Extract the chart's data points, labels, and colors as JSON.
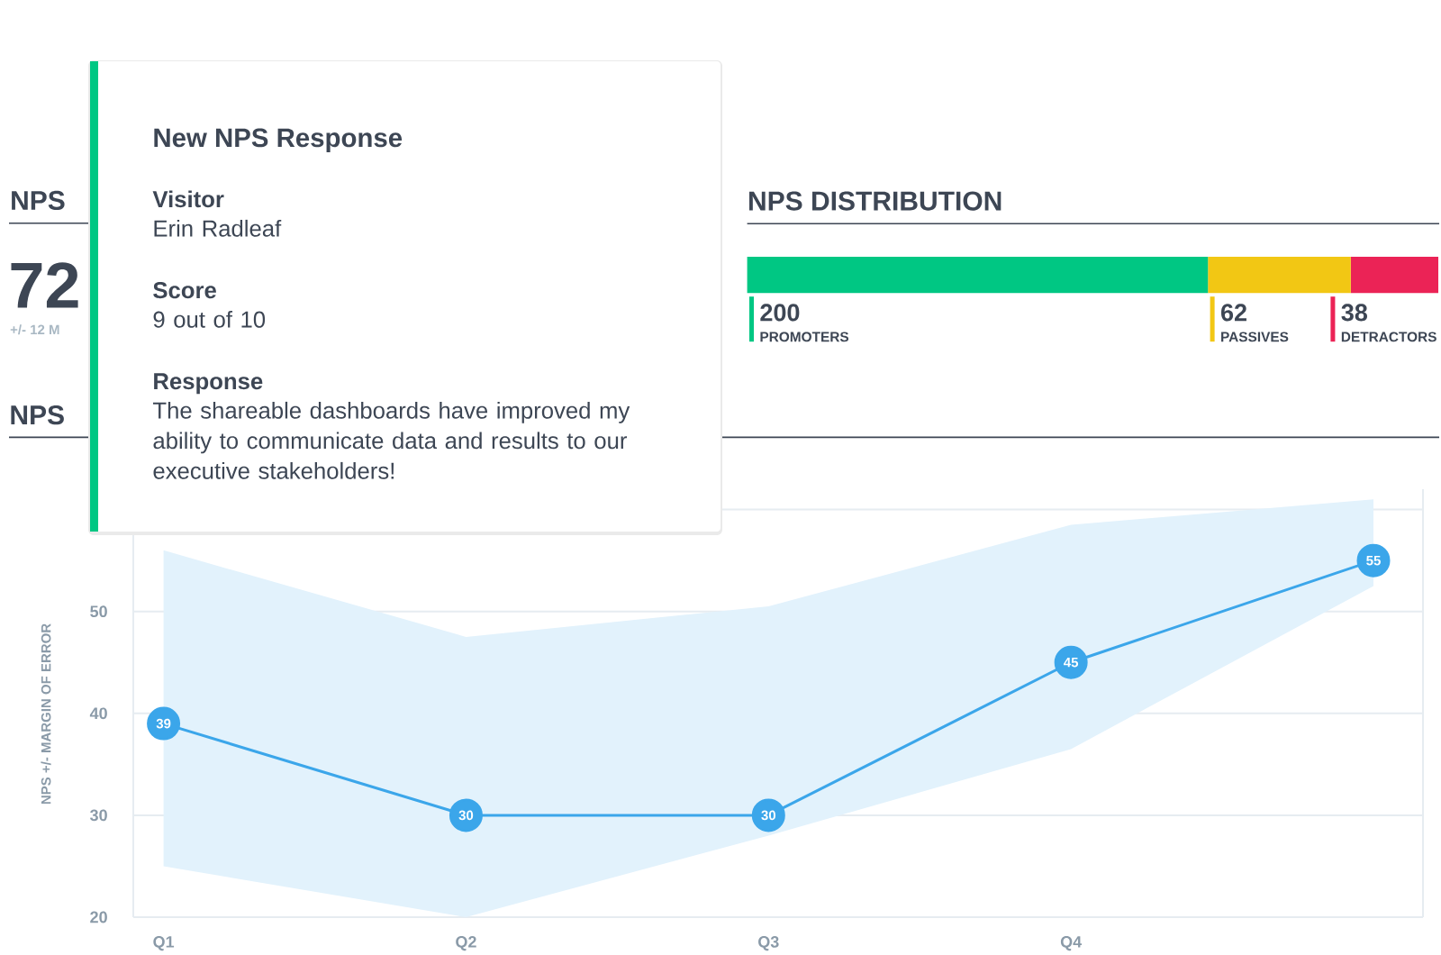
{
  "chart_data": [
    {
      "type": "other",
      "title": "NPS",
      "annotations": [
        "72",
        "+/- 12 M"
      ]
    },
    {
      "type": "bar",
      "title": "NPS DISTRIBUTION",
      "orientation": "horizontal",
      "stacked": true,
      "categories": [
        null
      ],
      "series": [
        {
          "name": "PROMOTERS",
          "color": "#00c783",
          "values": [
            200
          ]
        },
        {
          "name": "PASSIVES",
          "color": "#f2c714",
          "values": [
            62
          ]
        },
        {
          "name": "DETRACTORS",
          "color": "#eb2356",
          "values": [
            38
          ]
        }
      ],
      "tick_labels": false,
      "legend": "bottom",
      "data_labels": true
    },
    {
      "type": "line",
      "title": "NPS",
      "ylabel": "NPS +/- MARGIN OF ERROR",
      "categories": [
        "Q1",
        "Q2",
        "Q3",
        "Q4",
        null
      ],
      "series": [
        {
          "color": "#3ba6ea",
          "values": [
            39,
            30,
            30,
            45,
            55
          ],
          "lower": [
            25,
            20,
            28,
            36.5,
            52.5
          ],
          "upper": [
            56,
            47.5,
            50.5,
            58.5,
            61
          ]
        }
      ],
      "ylim": [
        20,
        62
      ],
      "yticks": [
        20,
        30,
        40,
        50,
        {
          "value": 60,
          "label": null
        }
      ],
      "grid": "y",
      "marker": "circle",
      "data_labels": true
    },
    {
      "type": "other",
      "title": "New NPS Response",
      "annotations": [
        "Visitor",
        "Erin Radleaf",
        "Score",
        "9 out of 10",
        "Response",
        "The shareable dashboards have improved my ability to communicate data and results to our executive stakeholders!"
      ]
    }
  ]
}
